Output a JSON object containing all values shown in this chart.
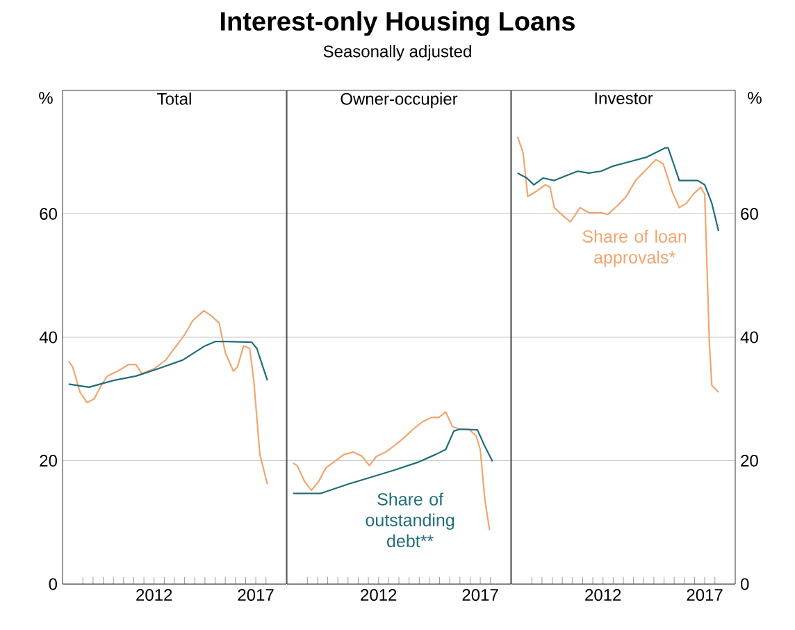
{
  "chart_data": [
    {
      "type": "other",
      "title": "Interest-only Housing Loans",
      "subtitle": "Seasonally adjusted"
    },
    {
      "type": "line",
      "title": "Total",
      "ylabel": "%",
      "xlim": [
        2007.5,
        2018.5
      ],
      "ylim": [
        0,
        80
      ],
      "yticks": [
        0,
        20,
        40,
        60
      ],
      "grid": "y",
      "xticks": [
        {
          "value": 2008.5,
          "label": null
        },
        {
          "value": 2009,
          "label": null
        },
        {
          "value": 2009.5,
          "label": null
        },
        {
          "value": 2010,
          "label": null
        },
        {
          "value": 2010.5,
          "label": null
        },
        {
          "value": 2011,
          "label": null
        },
        {
          "value": 2011.5,
          "label": null
        },
        {
          "value": 2012,
          "label": "2012"
        },
        {
          "value": 2012.5,
          "label": null
        },
        {
          "value": 2013,
          "label": null
        },
        {
          "value": 2013.5,
          "label": null
        },
        {
          "value": 2014,
          "label": null
        },
        {
          "value": 2014.5,
          "label": null
        },
        {
          "value": 2015,
          "label": null
        },
        {
          "value": 2015.5,
          "label": null
        },
        {
          "value": 2016,
          "label": null
        },
        {
          "value": 2016.5,
          "label": null
        },
        {
          "value": 2017,
          "label": "2017"
        },
        {
          "value": 2017.5,
          "label": null
        }
      ],
      "series": [
        {
          "color": "#f2a56e",
          "x": [
            2007.8,
            2008.0,
            2008.36,
            2008.7,
            2009.05,
            2009.4,
            2009.7,
            2010.2,
            2010.75,
            2011.1,
            2011.4,
            2012.0,
            2012.57,
            2013.0,
            2013.5,
            2013.9,
            2014.45,
            2014.84,
            2015.2,
            2015.5,
            2015.9,
            2016.1,
            2016.4,
            2016.7,
            2016.9,
            2017.2,
            2017.57
          ],
          "values": [
            36.1,
            35.2,
            31.1,
            29.4,
            30.0,
            32.2,
            33.7,
            34.5,
            35.6,
            35.6,
            34.1,
            34.9,
            36.3,
            38.2,
            40.4,
            42.7,
            44.3,
            43.4,
            42.3,
            37.5,
            34.5,
            35.2,
            38.6,
            38.2,
            33.0,
            21.0,
            16.2
          ]
        },
        {
          "color": "#1f6e7a",
          "x": [
            2007.8,
            2008.8,
            2010.0,
            2011.1,
            2012.2,
            2013.4,
            2014.5,
            2015.0,
            2015.6,
            2016.8,
            2017.05,
            2017.57
          ],
          "values": [
            32.4,
            31.9,
            33.0,
            33.7,
            34.9,
            36.3,
            38.6,
            39.3,
            39.3,
            39.2,
            38.2,
            33.0
          ]
        }
      ]
    },
    {
      "type": "line",
      "title": "Owner-occupier",
      "tick_labels": "x",
      "xlim": [
        2007.5,
        2018.5
      ],
      "ylim": [
        0,
        80
      ],
      "yticks": [
        0,
        20,
        40,
        60
      ],
      "grid": "y",
      "xticks": [
        {
          "value": 2008.5,
          "label": null
        },
        {
          "value": 2009,
          "label": null
        },
        {
          "value": 2009.5,
          "label": null
        },
        {
          "value": 2010,
          "label": null
        },
        {
          "value": 2010.5,
          "label": null
        },
        {
          "value": 2011,
          "label": null
        },
        {
          "value": 2011.5,
          "label": null
        },
        {
          "value": 2012,
          "label": "2012"
        },
        {
          "value": 2012.5,
          "label": null
        },
        {
          "value": 2013,
          "label": null
        },
        {
          "value": 2013.5,
          "label": null
        },
        {
          "value": 2014,
          "label": null
        },
        {
          "value": 2014.5,
          "label": null
        },
        {
          "value": 2015,
          "label": null
        },
        {
          "value": 2015.5,
          "label": null
        },
        {
          "value": 2016,
          "label": null
        },
        {
          "value": 2016.5,
          "label": null
        },
        {
          "value": 2017,
          "label": "2017"
        },
        {
          "value": 2017.5,
          "label": null
        }
      ],
      "series": [
        {
          "color": "#f2a56e",
          "x": [
            2007.8,
            2008.0,
            2008.37,
            2008.7,
            2009.05,
            2009.4,
            2009.85,
            2010.3,
            2010.75,
            2011.2,
            2011.55,
            2011.9,
            2012.35,
            2012.8,
            2013.25,
            2013.7,
            2014.16,
            2014.6,
            2014.96,
            2015.3,
            2015.64,
            2016.0,
            2016.44,
            2016.8,
            2017.0,
            2017.23,
            2017.46
          ],
          "values": [
            19.6,
            19.2,
            16.6,
            15.2,
            16.6,
            18.8,
            19.9,
            21.0,
            21.4,
            20.7,
            19.2,
            20.7,
            21.4,
            22.5,
            23.7,
            25.1,
            26.3,
            27.0,
            27.0,
            27.9,
            25.5,
            25.1,
            25.1,
            24.0,
            21.8,
            13.6,
            8.7
          ]
        },
        {
          "name": "Share of outstanding debt**",
          "color": "#1f6e7a",
          "x": [
            2007.8,
            2008.5,
            2009.16,
            2010.5,
            2011.6,
            2012.7,
            2013.9,
            2014.8,
            2015.3,
            2015.7,
            2016.0,
            2016.86,
            2017.2,
            2017.6
          ],
          "values": [
            14.7,
            14.7,
            14.7,
            16.2,
            17.3,
            18.4,
            19.7,
            21.0,
            21.8,
            24.8,
            25.1,
            25.0,
            22.5,
            19.9
          ]
        }
      ]
    },
    {
      "type": "line",
      "title": "Investor",
      "y2label": "%",
      "xlim": [
        2007.5,
        2018.5
      ],
      "y2lim": [
        0,
        80
      ],
      "y2ticks": [
        0,
        20,
        40,
        60
      ],
      "grid": "y",
      "xticks": [
        {
          "value": 2008.5,
          "label": null
        },
        {
          "value": 2009,
          "label": null
        },
        {
          "value": 2009.5,
          "label": null
        },
        {
          "value": 2010,
          "label": null
        },
        {
          "value": 2010.5,
          "label": null
        },
        {
          "value": 2011,
          "label": null
        },
        {
          "value": 2011.5,
          "label": null
        },
        {
          "value": 2012,
          "label": "2012"
        },
        {
          "value": 2012.5,
          "label": null
        },
        {
          "value": 2013,
          "label": null
        },
        {
          "value": 2013.5,
          "label": null
        },
        {
          "value": 2014,
          "label": null
        },
        {
          "value": 2014.5,
          "label": null
        },
        {
          "value": 2015,
          "label": null
        },
        {
          "value": 2015.5,
          "label": null
        },
        {
          "value": 2016,
          "label": null
        },
        {
          "value": 2016.5,
          "label": null
        },
        {
          "value": 2017,
          "label": "2017"
        },
        {
          "value": 2017.5,
          "label": null
        }
      ],
      "series": [
        {
          "name": "Share of loan approvals*",
          "axis": "y2",
          "color": "#f2a56e",
          "x": [
            2007.8,
            2008.07,
            2008.3,
            2008.7,
            2009.16,
            2009.4,
            2009.6,
            2010.07,
            2010.4,
            2010.87,
            2011.3,
            2011.9,
            2012.23,
            2012.7,
            2013.14,
            2013.6,
            2014.16,
            2014.6,
            2014.96,
            2015.4,
            2015.75,
            2016.1,
            2016.44,
            2016.8,
            2017.0,
            2017.23,
            2017.35,
            2017.68
          ],
          "values": [
            72.5,
            69.9,
            62.8,
            63.6,
            64.7,
            64.3,
            61.0,
            59.6,
            58.7,
            61.0,
            60.2,
            60.2,
            59.9,
            61.3,
            62.8,
            65.4,
            67.3,
            68.8,
            68.1,
            63.6,
            61.0,
            61.7,
            63.2,
            64.3,
            63.2,
            38.9,
            32.2,
            31.1
          ]
        },
        {
          "axis": "y2",
          "color": "#1f6e7a",
          "x": [
            2007.8,
            2008.25,
            2008.6,
            2009.05,
            2009.6,
            2010.2,
            2010.75,
            2011.3,
            2011.9,
            2012.46,
            2013.25,
            2014.16,
            2015.07,
            2015.2,
            2015.75,
            2016.66,
            2017.0,
            2017.35,
            2017.68
          ],
          "values": [
            66.6,
            65.8,
            64.7,
            65.8,
            65.4,
            66.2,
            66.9,
            66.6,
            66.9,
            67.7,
            68.4,
            69.2,
            70.7,
            70.7,
            65.4,
            65.4,
            64.7,
            61.7,
            57.2
          ]
        }
      ]
    }
  ]
}
